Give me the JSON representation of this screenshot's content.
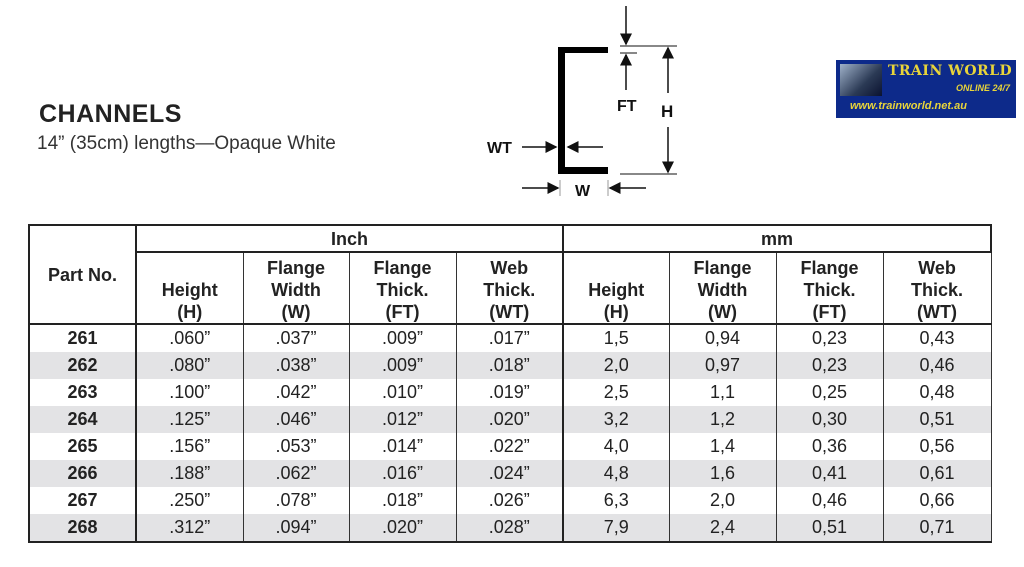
{
  "heading": {
    "title": "CHANNELS",
    "subtitle": "14” (35cm) lengths—Opaque White"
  },
  "diagram": {
    "labels": {
      "ft": "FT",
      "h": "H",
      "wt": "WT",
      "w": "W"
    }
  },
  "table": {
    "part_header": "Part No.",
    "group_inch": "Inch",
    "group_mm": "mm",
    "columns": [
      {
        "l1": "Height",
        "l2": "(H)"
      },
      {
        "l0": "Flange",
        "l1": "Width",
        "l2": "(W)"
      },
      {
        "l0": "Flange",
        "l1": "Thick.",
        "l2": "(FT)"
      },
      {
        "l0": "Web",
        "l1": "Thick.",
        "l2": "(WT)"
      }
    ],
    "rows": [
      {
        "part": "261",
        "inch": [
          ".060”",
          ".037”",
          ".009”",
          ".017”"
        ],
        "mm": [
          "1,5",
          "0,94",
          "0,23",
          "0,43"
        ]
      },
      {
        "part": "262",
        "inch": [
          ".080”",
          ".038”",
          ".009”",
          ".018”"
        ],
        "mm": [
          "2,0",
          "0,97",
          "0,23",
          "0,46"
        ]
      },
      {
        "part": "263",
        "inch": [
          ".100”",
          ".042”",
          ".010”",
          ".019”"
        ],
        "mm": [
          "2,5",
          "1,1",
          "0,25",
          "0,48"
        ]
      },
      {
        "part": "264",
        "inch": [
          ".125”",
          ".046”",
          ".012”",
          ".020”"
        ],
        "mm": [
          "3,2",
          "1,2",
          "0,30",
          "0,51"
        ]
      },
      {
        "part": "265",
        "inch": [
          ".156”",
          ".053”",
          ".014”",
          ".022”"
        ],
        "mm": [
          "4,0",
          "1,4",
          "0,36",
          "0,56"
        ]
      },
      {
        "part": "266",
        "inch": [
          ".188”",
          ".062”",
          ".016”",
          ".024”"
        ],
        "mm": [
          "4,8",
          "1,6",
          "0,41",
          "0,61"
        ]
      },
      {
        "part": "267",
        "inch": [
          ".250”",
          ".078”",
          ".018”",
          ".026”"
        ],
        "mm": [
          "6,3",
          "2,0",
          "0,46",
          "0,66"
        ]
      },
      {
        "part": "268",
        "inch": [
          ".312”",
          ".094”",
          ".020”",
          ".028”"
        ],
        "mm": [
          "7,9",
          "2,4",
          "0,51",
          "0,71"
        ]
      }
    ]
  },
  "watermark": {
    "name": "TRAIN WORLD",
    "tagline": "ONLINE 24/7",
    "url": "www.trainworld.net.au"
  }
}
